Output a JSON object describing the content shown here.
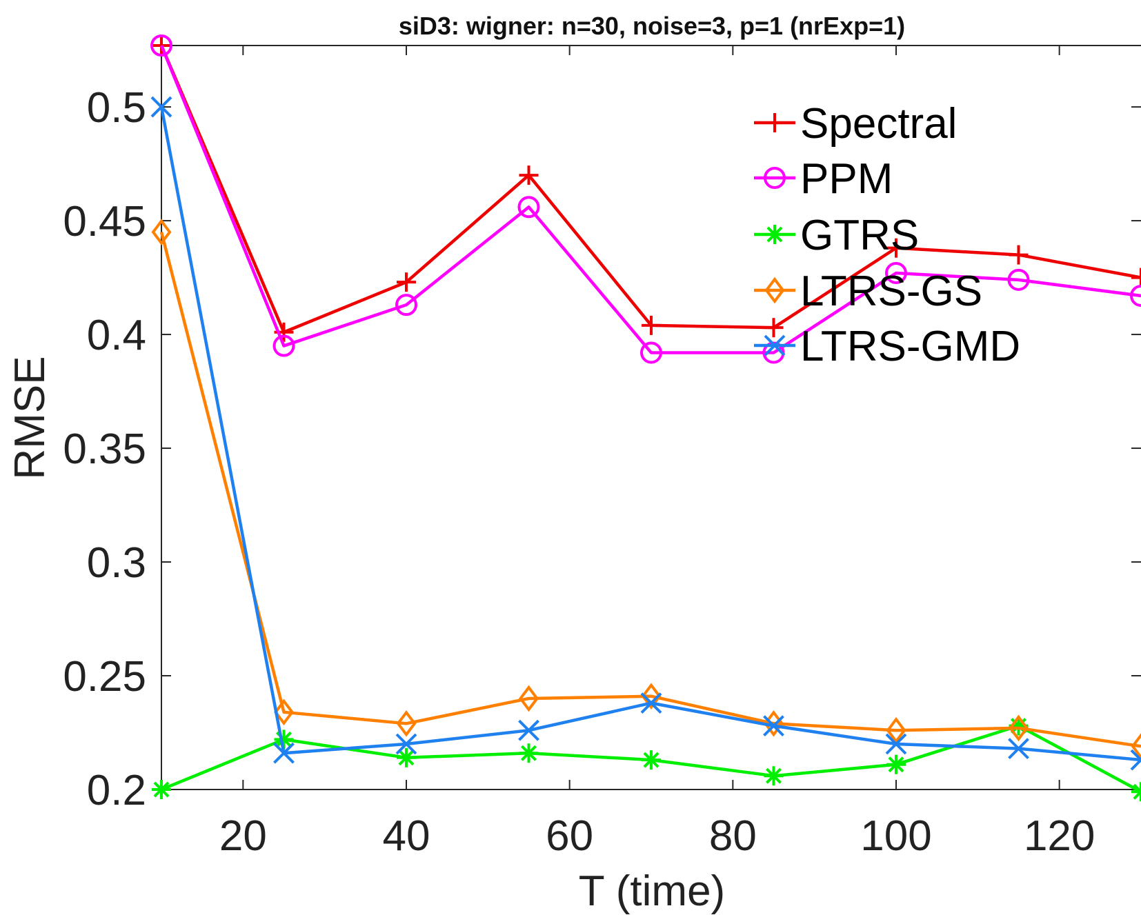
{
  "chart_data": {
    "type": "line",
    "title": "siD3: wigner: n=30, noise=3, p=1 (nrExp=1)",
    "xlabel": "T (time)",
    "ylabel": "RMSE",
    "xlim": [
      10,
      130
    ],
    "ylim": [
      0.2,
      0.527
    ],
    "xticks": [
      20,
      40,
      60,
      80,
      100,
      120
    ],
    "yticks": [
      0.2,
      0.25,
      0.3,
      0.35,
      0.4,
      0.45,
      0.5
    ],
    "ytick_labels": [
      "0.2",
      "0.25",
      "0.3",
      "0.35",
      "0.4",
      "0.45",
      "0.5"
    ],
    "grid": false,
    "legend_position": "top-right",
    "x": [
      10,
      25,
      40,
      55,
      70,
      85,
      100,
      115,
      130
    ],
    "series": [
      {
        "name": "Spectral",
        "color": "#ee0000",
        "marker": "plus",
        "values": [
          0.527,
          0.401,
          0.423,
          0.47,
          0.404,
          0.403,
          0.438,
          0.435,
          0.425
        ]
      },
      {
        "name": "PPM",
        "color": "#ff00ff",
        "marker": "circle",
        "values": [
          0.527,
          0.395,
          0.413,
          0.456,
          0.392,
          0.392,
          0.427,
          0.424,
          0.417
        ]
      },
      {
        "name": "GTRS",
        "color": "#00ee00",
        "marker": "asterisk",
        "values": [
          0.2,
          0.222,
          0.214,
          0.216,
          0.213,
          0.206,
          0.211,
          0.228,
          0.199
        ]
      },
      {
        "name": "LTRS-GS",
        "color": "#ff8000",
        "marker": "diamond",
        "values": [
          0.445,
          0.234,
          0.229,
          0.24,
          0.241,
          0.229,
          0.226,
          0.227,
          0.219
        ]
      },
      {
        "name": "LTRS-GMD",
        "color": "#1f80f0",
        "marker": "x",
        "values": [
          0.5,
          0.216,
          0.22,
          0.226,
          0.238,
          0.228,
          0.22,
          0.218,
          0.213
        ]
      }
    ]
  }
}
